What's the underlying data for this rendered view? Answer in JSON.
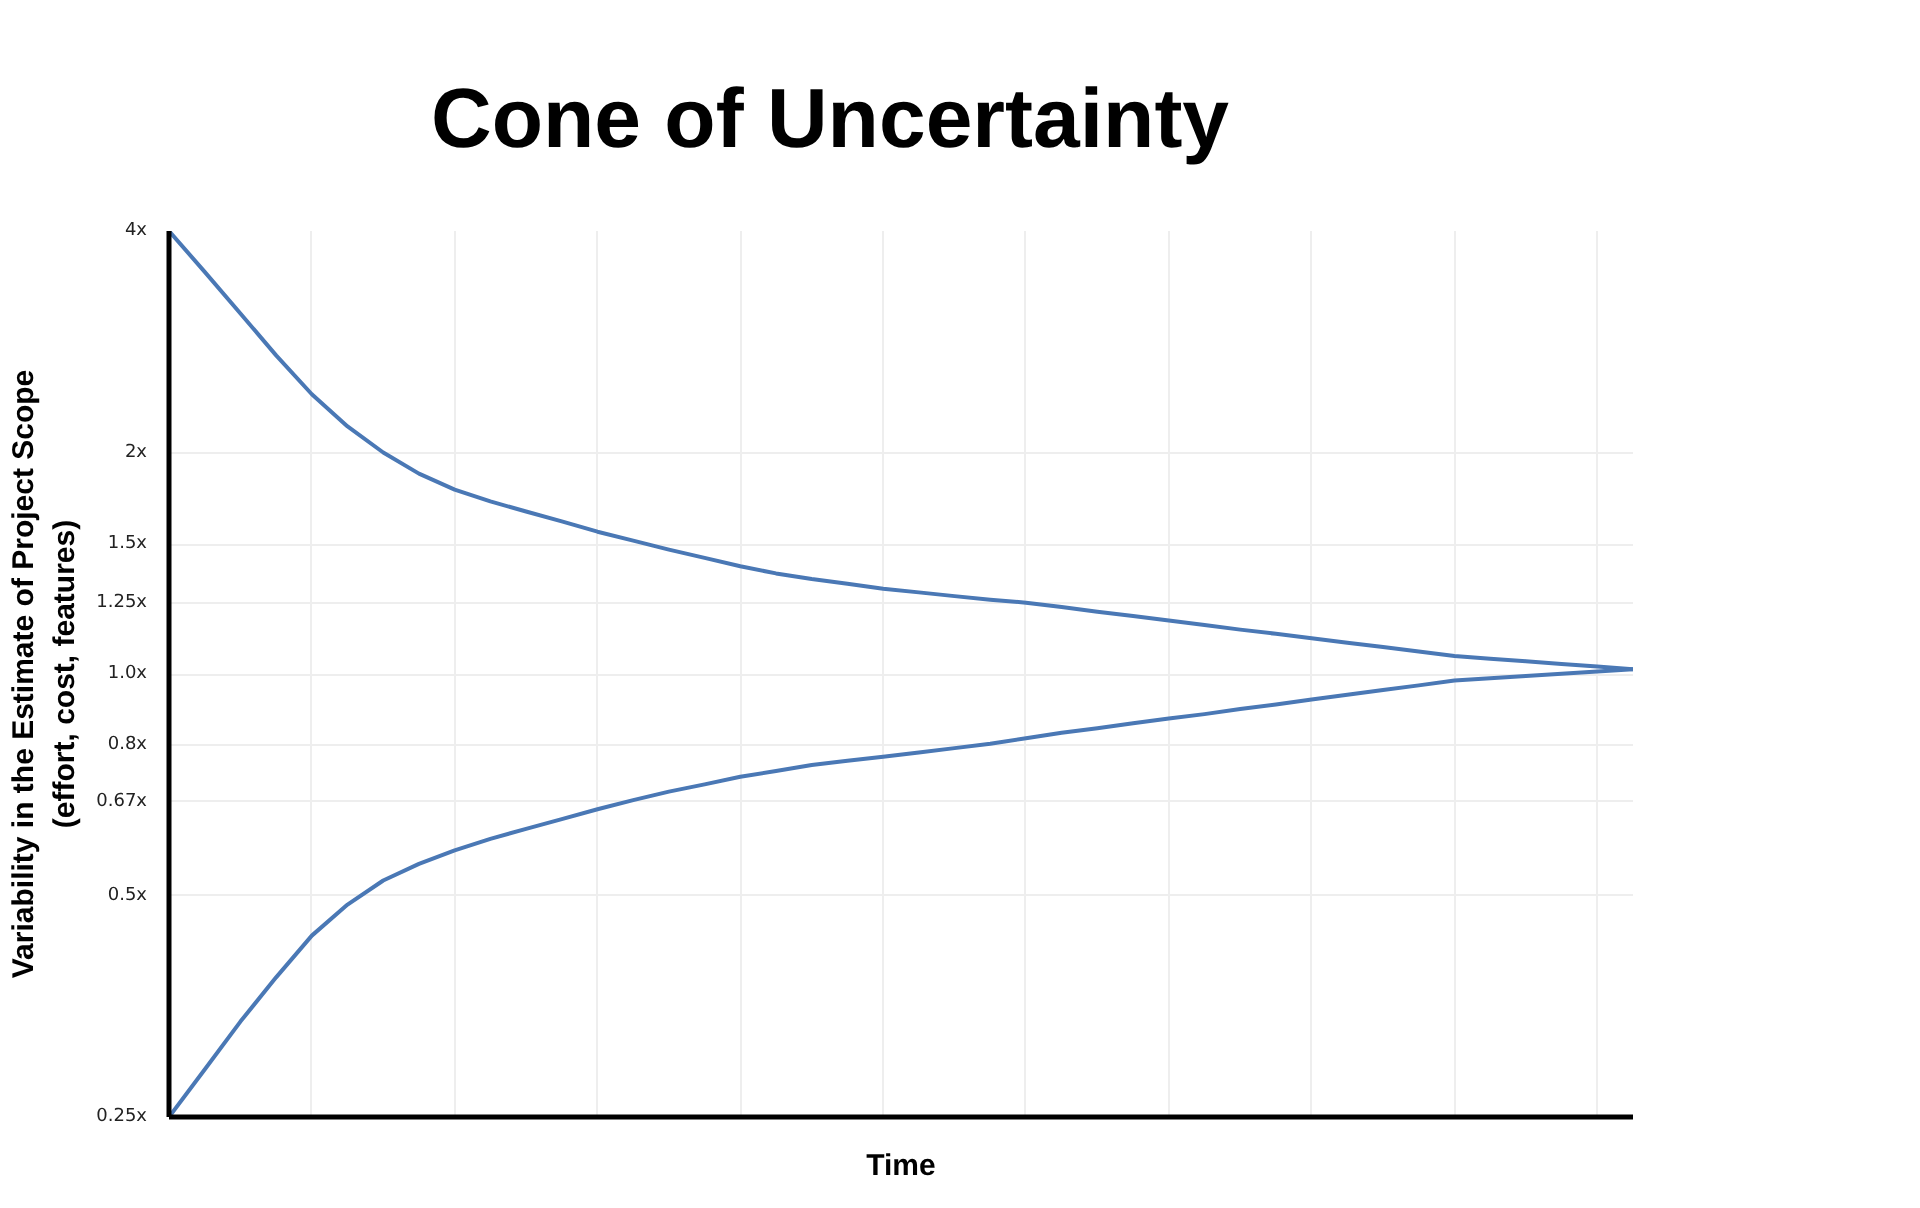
{
  "chart_data": {
    "type": "line",
    "title": "Cone of Uncertainty",
    "xlabel": "Time",
    "ylabel": "Variability in the Estimate of Project Scope\n(effort, cost, features)",
    "categories": [
      null,
      null,
      null,
      null,
      null,
      null,
      null,
      null,
      null,
      null,
      null,
      null,
      null,
      null,
      null,
      null,
      null,
      null,
      null,
      null,
      null,
      null,
      null,
      null,
      null,
      null,
      null,
      null,
      null,
      null,
      null,
      null,
      null,
      null,
      null,
      null,
      null,
      null,
      null,
      null,
      null,
      null
    ],
    "series": [
      {
        "color": "#4a78b5",
        "values": [
          4,
          3.52,
          3.09,
          2.71,
          2.4,
          2.17,
          2.0,
          1.872,
          1.781,
          1.716,
          1.663,
          1.612,
          1.561,
          1.518,
          1.476,
          1.438,
          1.401,
          1.37,
          1.346,
          1.326,
          1.306,
          1.291,
          1.276,
          1.262,
          1.25,
          1.233,
          1.215,
          1.199,
          1.182,
          1.166,
          1.149,
          1.134,
          1.118,
          1.103,
          1.088,
          1.073,
          1.058,
          1.049,
          1.041,
          1.032,
          1.024,
          1.015
        ]
      },
      {
        "color": "#4a78b5",
        "values": [
          0.25,
          0.29,
          0.337,
          0.387,
          0.441,
          0.486,
          0.524,
          0.552,
          0.576,
          0.597,
          0.616,
          0.635,
          0.655,
          0.674,
          0.692,
          0.708,
          0.725,
          0.738,
          0.752,
          0.762,
          0.772,
          0.782,
          0.793,
          0.804,
          0.818,
          0.832,
          0.844,
          0.857,
          0.87,
          0.882,
          0.896,
          0.909,
          0.923,
          0.937,
          0.951,
          0.965,
          0.98,
          0.987,
          0.994,
          1.001,
          1.008,
          1.015
        ]
      }
    ],
    "ylim": [
      0.25,
      4
    ],
    "yticks": [
      {
        "value": 0.25,
        "label": "0.25x"
      },
      {
        "value": 0.5,
        "label": "0.5x"
      },
      {
        "value": 0.67,
        "label": "0.67x"
      },
      {
        "value": 0.8,
        "label": "0.8x"
      },
      {
        "value": 1,
        "label": "1.0x"
      },
      {
        "value": 1.25,
        "label": "1.25x"
      },
      {
        "value": 1.5,
        "label": "1.5x"
      },
      {
        "value": 2,
        "label": "2x"
      },
      {
        "value": 4,
        "label": "4x"
      }
    ],
    "log": "y",
    "grid": true,
    "tick_labels": "y"
  }
}
